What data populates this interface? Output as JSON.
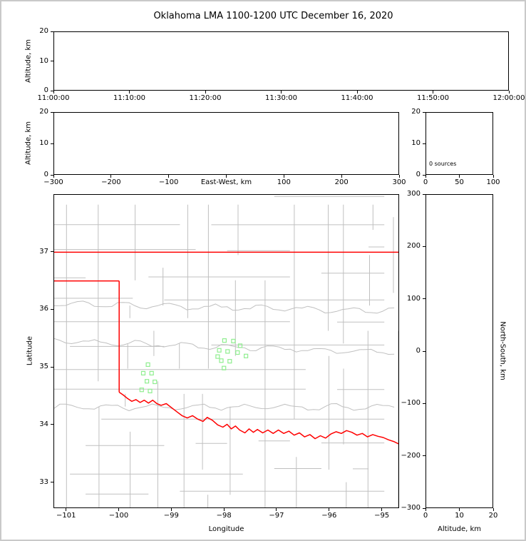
{
  "title": "Oklahoma LMA 1100-1200 UTC December 16, 2020",
  "colors": {
    "state_border": "#ff0000",
    "county_line": "#c0c0c0",
    "river": "#c0c0c0",
    "station_marker": "#90ee90",
    "axis": "#000000",
    "figure_frame": "#c9c9c9"
  },
  "chart_data": {
    "type": "scatter",
    "title": "Oklahoma LMA 1100-1200 UTC December 16, 2020",
    "vhf_source_count": 0,
    "panels": [
      {
        "id": "time_height",
        "xticklabels": [
          "11:00:00",
          "11:10:00",
          "11:20:00",
          "11:30:00",
          "11:40:00",
          "11:50:00",
          "12:00:00"
        ],
        "xtickvals": [
          0,
          1,
          2,
          3,
          4,
          5,
          6
        ],
        "xlim": [
          0,
          6
        ],
        "yticklabels": [
          "0",
          "10",
          "20"
        ],
        "ytickvals": [
          0,
          10,
          20
        ],
        "ylim": [
          0,
          20
        ],
        "ylabel": "Altitude, km",
        "points": []
      },
      {
        "id": "ew_altitude",
        "xticklabels": [
          "−300",
          "−200",
          "−100",
          "0",
          "100",
          "200",
          "300"
        ],
        "xtickvals": [
          -300,
          -200,
          -100,
          0,
          100,
          200,
          300
        ],
        "xlim": [
          -300,
          300
        ],
        "yticklabels": [
          "0",
          "10",
          "20"
        ],
        "ytickvals": [
          0,
          10,
          20
        ],
        "ylim": [
          0,
          20
        ],
        "xlabel": "East-West, km",
        "ylabel": "Altitude, km",
        "points": []
      },
      {
        "id": "altitude_histogram",
        "xticklabels": [
          "0",
          "50",
          "100"
        ],
        "xtickvals": [
          0,
          50,
          100
        ],
        "xlim": [
          0,
          100
        ],
        "yticklabels": [
          "0",
          "10",
          "20"
        ],
        "ytickvals": [
          0,
          10,
          20
        ],
        "ylim": [
          0,
          20
        ],
        "annotation": "0 sources",
        "points": []
      },
      {
        "id": "plan_view_map",
        "xticklabels": [
          "−101",
          "−100",
          "−99",
          "−98",
          "−97",
          "−96",
          "−95"
        ],
        "xtickvals": [
          -101,
          -100,
          -99,
          -98,
          -97,
          -96,
          -95
        ],
        "xlim": [
          -101.24,
          -94.67
        ],
        "yticklabels": [
          "33",
          "34",
          "35",
          "36",
          "37"
        ],
        "ytickvals": [
          33,
          34,
          35,
          36,
          37
        ],
        "ylim": [
          32.55,
          38.0
        ],
        "xlabel": "Longitude",
        "ylabel": "Latitude",
        "points": []
      },
      {
        "id": "ns_altitude",
        "xticklabels": [
          "0",
          "10",
          "20"
        ],
        "xtickvals": [
          0,
          10,
          20
        ],
        "xlim": [
          0,
          20
        ],
        "yticklabels": [
          "−300",
          "−200",
          "−100",
          "0",
          "100",
          "200",
          "300"
        ],
        "ytickvals": [
          -300,
          -200,
          -100,
          0,
          100,
          200,
          300
        ],
        "ylim": [
          -300,
          300
        ],
        "xlabel": "Altitude, km",
        "ylabel": "North-South, km",
        "points": []
      }
    ],
    "stations_lon_lat": [
      [
        -97.99,
        35.46
      ],
      [
        -97.82,
        35.45
      ],
      [
        -98.09,
        35.29
      ],
      [
        -97.93,
        35.27
      ],
      [
        -97.74,
        35.25
      ],
      [
        -97.58,
        35.19
      ],
      [
        -98.05,
        35.11
      ],
      [
        -97.89,
        35.1
      ],
      [
        -98.0,
        34.98
      ],
      [
        -97.69,
        35.37
      ],
      [
        -98.12,
        35.18
      ],
      [
        -99.45,
        35.04
      ],
      [
        -99.54,
        34.89
      ],
      [
        -99.38,
        34.89
      ],
      [
        -99.47,
        34.75
      ],
      [
        -99.32,
        34.74
      ],
      [
        -99.57,
        34.6
      ],
      [
        -99.41,
        34.58
      ]
    ],
    "state_border": {
      "north_lat": 37.0,
      "panhandle_south_lat": 36.5,
      "west_lon": -100.0,
      "red_river_lon_lat": [
        [
          -100.0,
          34.56
        ],
        [
          -99.92,
          34.51
        ],
        [
          -99.84,
          34.45
        ],
        [
          -99.76,
          34.4
        ],
        [
          -99.68,
          34.43
        ],
        [
          -99.6,
          34.38
        ],
        [
          -99.52,
          34.42
        ],
        [
          -99.44,
          34.37
        ],
        [
          -99.36,
          34.42
        ],
        [
          -99.28,
          34.36
        ],
        [
          -99.2,
          34.33
        ],
        [
          -99.1,
          34.36
        ],
        [
          -99.0,
          34.29
        ],
        [
          -98.9,
          34.22
        ],
        [
          -98.8,
          34.15
        ],
        [
          -98.7,
          34.11
        ],
        [
          -98.6,
          34.15
        ],
        [
          -98.5,
          34.09
        ],
        [
          -98.4,
          34.05
        ],
        [
          -98.32,
          34.12
        ],
        [
          -98.22,
          34.07
        ],
        [
          -98.12,
          33.99
        ],
        [
          -98.02,
          33.95
        ],
        [
          -97.94,
          34.0
        ],
        [
          -97.86,
          33.92
        ],
        [
          -97.78,
          33.97
        ],
        [
          -97.7,
          33.9
        ],
        [
          -97.6,
          33.85
        ],
        [
          -97.52,
          33.92
        ],
        [
          -97.44,
          33.86
        ],
        [
          -97.36,
          33.91
        ],
        [
          -97.26,
          33.85
        ],
        [
          -97.16,
          33.9
        ],
        [
          -97.06,
          33.84
        ],
        [
          -96.96,
          33.9
        ],
        [
          -96.86,
          33.84
        ],
        [
          -96.76,
          33.88
        ],
        [
          -96.66,
          33.81
        ],
        [
          -96.56,
          33.85
        ],
        [
          -96.46,
          33.78
        ],
        [
          -96.36,
          33.82
        ],
        [
          -96.26,
          33.75
        ],
        [
          -96.16,
          33.8
        ],
        [
          -96.06,
          33.76
        ],
        [
          -95.96,
          33.83
        ],
        [
          -95.86,
          33.87
        ],
        [
          -95.76,
          33.84
        ],
        [
          -95.66,
          33.89
        ],
        [
          -95.56,
          33.86
        ],
        [
          -95.46,
          33.81
        ],
        [
          -95.36,
          33.84
        ],
        [
          -95.26,
          33.78
        ],
        [
          -95.16,
          33.82
        ],
        [
          -95.06,
          33.79
        ],
        [
          -94.96,
          33.77
        ],
        [
          -94.86,
          33.73
        ],
        [
          -94.76,
          33.7
        ],
        [
          -94.67,
          33.66
        ]
      ]
    }
  }
}
